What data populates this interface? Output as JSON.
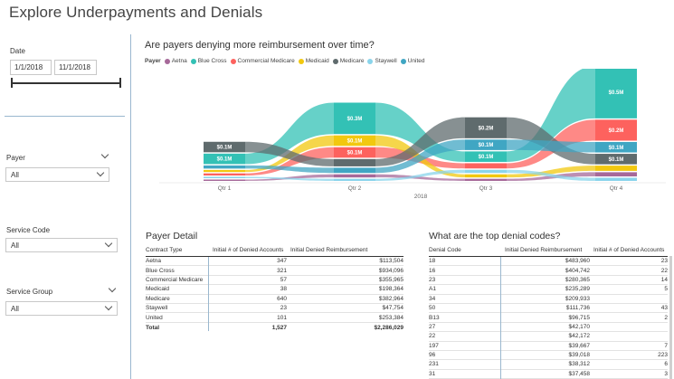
{
  "page": {
    "title": "Explore Underpayments and Denials"
  },
  "filters": {
    "date": {
      "label": "Date",
      "start": "1/1/2018",
      "end": "11/1/2018"
    },
    "payer": {
      "label": "Payer",
      "value": "All"
    },
    "service_code": {
      "label": "Service Code",
      "value": "All"
    },
    "service_group": {
      "label": "Service Group",
      "value": "All"
    }
  },
  "ribbon_chart": {
    "title": "Are payers denying more reimbursement over time?",
    "legend_title": "Payer",
    "legend": [
      {
        "name": "Aetna",
        "color": "#a66999"
      },
      {
        "name": "Blue Cross",
        "color": "#33c1b5"
      },
      {
        "name": "Commercial Medicare",
        "color": "#fd625e"
      },
      {
        "name": "Medicaid",
        "color": "#f2c80f"
      },
      {
        "name": "Medicare",
        "color": "#5f6b6d"
      },
      {
        "name": "Staywell",
        "color": "#8ad4eb"
      },
      {
        "name": "United",
        "color": "#40a6c3"
      }
    ],
    "xaxis_title": "2018"
  },
  "chart_data": {
    "type": "area",
    "title": "Are payers denying more reimbursement over time?",
    "xlabel": "2018",
    "ylabel": "",
    "categories": [
      "Qtr 1",
      "Qtr 2",
      "Qtr 3",
      "Qtr 4"
    ],
    "series": [
      {
        "name": "Aetna",
        "color": "#a66999",
        "values": [
          0.01,
          0.03,
          0.02,
          0.04
        ],
        "labels": [
          "",
          "",
          "",
          ""
        ]
      },
      {
        "name": "Blue Cross",
        "color": "#33c1b5",
        "values": [
          0.1,
          0.3,
          0.1,
          0.5
        ],
        "labels": [
          "$0.1M",
          "$0.3M",
          "$0.1M",
          "$0.5M"
        ]
      },
      {
        "name": "Commercial Medicare",
        "color": "#fd625e",
        "values": [
          0.02,
          0.1,
          0.05,
          0.2
        ],
        "labels": [
          "",
          "$0.1M",
          "",
          "$0.2M"
        ]
      },
      {
        "name": "Medicaid",
        "color": "#f2c80f",
        "values": [
          0.02,
          0.1,
          0.03,
          0.05
        ],
        "labels": [
          "",
          "$0.1M",
          "",
          ""
        ]
      },
      {
        "name": "Medicare",
        "color": "#5f6b6d",
        "values": [
          0.1,
          0.07,
          0.2,
          0.1
        ],
        "labels": [
          "$0.1M",
          "",
          "$0.2M",
          "$0.1M"
        ]
      },
      {
        "name": "Staywell",
        "color": "#8ad4eb",
        "values": [
          0.01,
          0.02,
          0.03,
          0.03
        ],
        "labels": [
          "",
          "",
          "",
          ""
        ]
      },
      {
        "name": "United",
        "color": "#40a6c3",
        "values": [
          0.03,
          0.05,
          0.1,
          0.1
        ],
        "labels": [
          "",
          "",
          "$0.1M",
          "$0.1M"
        ]
      }
    ],
    "point_labels": {
      "Qtr 1": [
        "$0.1M",
        "$0.1M"
      ],
      "Qtr 2": [
        "$0.3M",
        "$0.1M",
        "$0.1M"
      ],
      "Qtr 3": [
        "$0.2M",
        "$0.1M",
        "$0.1M",
        "$0.1M",
        "$0.0M"
      ],
      "Qtr 4": [
        "$0.5M",
        "$0.2M",
        "$0.1M",
        "$0.1M",
        "$0.0M"
      ]
    }
  },
  "payer_detail": {
    "title": "Payer Detail",
    "columns": [
      "Contract Type",
      "Initial # of Denied Accounts",
      "Initial Denied Reimbursement"
    ],
    "rows": [
      [
        "Aetna",
        "347",
        "$113,504"
      ],
      [
        "Blue Cross",
        "321",
        "$934,096"
      ],
      [
        "Commercial Medicare",
        "57",
        "$355,965"
      ],
      [
        "Medicaid",
        "38",
        "$198,364"
      ],
      [
        "Medicare",
        "640",
        "$382,964"
      ],
      [
        "Staywell",
        "23",
        "$47,754"
      ],
      [
        "United",
        "101",
        "$253,384"
      ]
    ],
    "total": [
      "Total",
      "1,527",
      "$2,286,029"
    ]
  },
  "denial_codes": {
    "title": "What are the top denial codes?",
    "columns": [
      "Denial Code",
      "Initial Denied Reimbursement",
      "Initial # of Denied Accounts"
    ],
    "rows": [
      [
        "18",
        "$483,960",
        "23"
      ],
      [
        "16",
        "$404,742",
        "22"
      ],
      [
        "23",
        "$280,365",
        "14"
      ],
      [
        "A1",
        "$235,289",
        "5"
      ],
      [
        "34",
        "$209,933",
        ""
      ],
      [
        "50",
        "$111,736",
        "43"
      ],
      [
        "B13",
        "$96,715",
        "2"
      ],
      [
        "27",
        "$42,170",
        ""
      ],
      [
        "22",
        "$42,172",
        ""
      ],
      [
        "197",
        "$39,667",
        "7"
      ],
      [
        "96",
        "$39,018",
        "223"
      ],
      [
        "231",
        "$38,312",
        "6"
      ],
      [
        "31",
        "$37,458",
        "3"
      ]
    ]
  }
}
